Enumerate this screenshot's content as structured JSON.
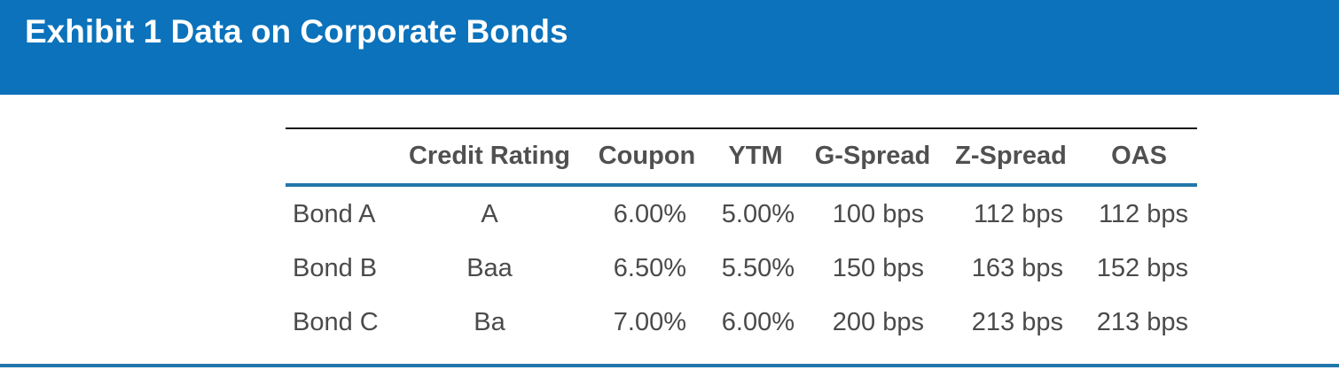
{
  "exhibit": {
    "title": "Exhibit 1 Data on Corporate Bonds"
  },
  "table": {
    "headers": [
      "",
      "Credit Rating",
      "Coupon",
      "YTM",
      "G-Spread",
      "Z-Spread",
      "OAS"
    ],
    "rows": [
      [
        "Bond A",
        "A",
        "6.00%",
        "5.00%",
        "100 bps",
        "112 bps",
        "112 bps"
      ],
      [
        "Bond B",
        "Baa",
        "6.50%",
        "5.50%",
        "150 bps",
        "163 bps",
        "152 bps"
      ],
      [
        "Bond C",
        "Ba",
        "7.00%",
        "6.00%",
        "200 bps",
        "213 bps",
        "213 bps"
      ]
    ]
  },
  "colors": {
    "header_band": "#0b72bb",
    "rule_accent": "#2277aa",
    "text": "#4a4a4a"
  }
}
